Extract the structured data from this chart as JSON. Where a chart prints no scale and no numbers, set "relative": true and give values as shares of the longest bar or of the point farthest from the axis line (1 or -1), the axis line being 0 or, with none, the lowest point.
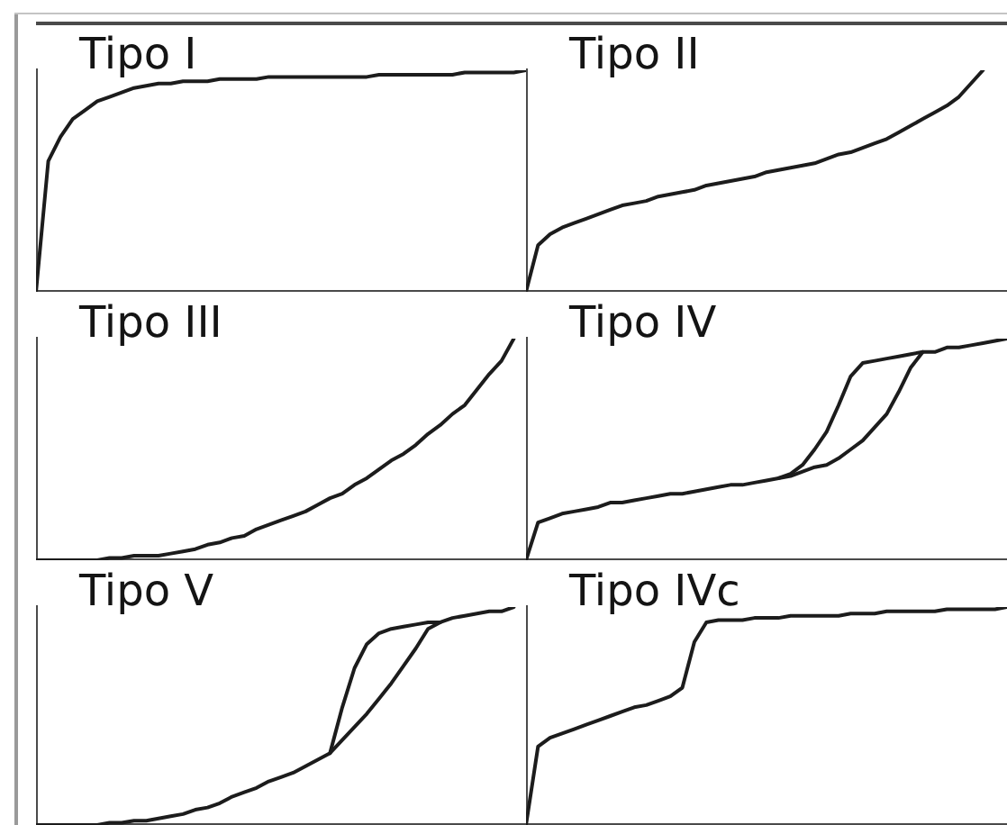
{
  "chart_data": [
    {
      "type": "line",
      "title": "Tipo I",
      "relative": true,
      "marker": "none",
      "categories": [
        null,
        null,
        null,
        null,
        null,
        null,
        null,
        null,
        null,
        null,
        null,
        null,
        null,
        null,
        null,
        null,
        null,
        null,
        null,
        null,
        null,
        null,
        null,
        null,
        null,
        null,
        null,
        null,
        null,
        null,
        null,
        null,
        null,
        null,
        null,
        null,
        null,
        null,
        null,
        null,
        null
      ],
      "series": [
        {
          "color": "#1c1c1c",
          "values": [
            0,
            0.59,
            0.7,
            0.78,
            0.82,
            0.86,
            0.88,
            0.9,
            0.92,
            0.93,
            0.94,
            0.94,
            0.95,
            0.95,
            0.95,
            0.96,
            0.96,
            0.96,
            0.96,
            0.97,
            0.97,
            0.97,
            0.97,
            0.97,
            0.97,
            0.97,
            0.97,
            0.97,
            0.98,
            0.98,
            0.98,
            0.98,
            0.98,
            0.98,
            0.98,
            0.99,
            0.99,
            0.99,
            0.99,
            0.99,
            1
          ]
        }
      ]
    },
    {
      "type": "line",
      "title": "Tipo II",
      "relative": true,
      "marker": "none",
      "categories": [
        null,
        null,
        null,
        null,
        null,
        null,
        null,
        null,
        null,
        null,
        null,
        null,
        null,
        null,
        null,
        null,
        null,
        null,
        null,
        null,
        null,
        null,
        null,
        null,
        null,
        null,
        null,
        null,
        null,
        null,
        null,
        null,
        null,
        null,
        null,
        null,
        null,
        null,
        null,
        null,
        null
      ],
      "series": [
        {
          "color": "#1c1c1c",
          "values": [
            0,
            0.21,
            0.26,
            0.29,
            0.31,
            0.33,
            0.35,
            0.37,
            0.39,
            0.4,
            0.41,
            0.43,
            0.44,
            0.45,
            0.46,
            0.48,
            0.49,
            0.5,
            0.51,
            0.52,
            0.54,
            0.55,
            0.56,
            0.57,
            0.58,
            0.6,
            0.62,
            0.63,
            0.65,
            0.67,
            0.69,
            0.72,
            0.75,
            0.78,
            0.81,
            0.84,
            0.88,
            0.94,
            1,
            null,
            null
          ]
        }
      ]
    },
    {
      "type": "line",
      "title": "Tipo III",
      "relative": true,
      "marker": "none",
      "categories": [
        null,
        null,
        null,
        null,
        null,
        null,
        null,
        null,
        null,
        null,
        null,
        null,
        null,
        null,
        null,
        null,
        null,
        null,
        null,
        null,
        null,
        null,
        null,
        null,
        null,
        null,
        null,
        null,
        null,
        null,
        null,
        null,
        null,
        null,
        null,
        null,
        null,
        null,
        null,
        null,
        null
      ],
      "series": [
        {
          "color": "#1c1c1c",
          "values": [
            0,
            0,
            0,
            0,
            0,
            0,
            0.01,
            0.01,
            0.02,
            0.02,
            0.02,
            0.03,
            0.04,
            0.05,
            0.07,
            0.08,
            0.1,
            0.11,
            0.14,
            0.16,
            0.18,
            0.2,
            0.22,
            0.25,
            0.28,
            0.3,
            0.34,
            0.37,
            0.41,
            0.45,
            0.48,
            0.52,
            0.57,
            0.61,
            0.66,
            0.7,
            0.77,
            0.84,
            0.9,
            1,
            null
          ]
        }
      ]
    },
    {
      "type": "line",
      "title": "Tipo IV",
      "relative": true,
      "marker": "none",
      "categories": [
        null,
        null,
        null,
        null,
        null,
        null,
        null,
        null,
        null,
        null,
        null,
        null,
        null,
        null,
        null,
        null,
        null,
        null,
        null,
        null,
        null,
        null,
        null,
        null,
        null,
        null,
        null,
        null,
        null,
        null,
        null,
        null,
        null,
        null,
        null,
        null,
        null,
        null,
        null,
        null,
        null
      ],
      "series": [
        {
          "color": "#1c1c1c",
          "values": [
            0,
            0.17,
            0.19,
            0.21,
            0.22,
            0.23,
            0.24,
            0.26,
            0.26,
            0.27,
            0.28,
            0.29,
            0.3,
            0.3,
            0.31,
            0.32,
            0.33,
            0.34,
            0.34,
            0.35,
            0.36,
            0.37,
            0.38,
            0.4,
            0.42,
            0.43,
            0.46,
            0.5,
            0.54,
            0.6,
            0.66,
            0.76,
            0.87,
            0.94,
            0.94,
            0.96,
            0.96,
            0.97,
            0.98,
            0.99,
            1
          ]
        },
        {
          "color": "#1c1c1c",
          "values": [
            null,
            null,
            null,
            null,
            null,
            null,
            null,
            null,
            null,
            null,
            null,
            null,
            null,
            null,
            null,
            null,
            null,
            null,
            null,
            null,
            null,
            0.37,
            0.39,
            0.43,
            0.5,
            0.58,
            0.7,
            0.83,
            0.89,
            0.9,
            0.91,
            0.92,
            0.93,
            0.94,
            null,
            null,
            null,
            null,
            null,
            null,
            null
          ]
        }
      ]
    },
    {
      "type": "line",
      "title": "Tipo V",
      "relative": true,
      "marker": "none",
      "categories": [
        null,
        null,
        null,
        null,
        null,
        null,
        null,
        null,
        null,
        null,
        null,
        null,
        null,
        null,
        null,
        null,
        null,
        null,
        null,
        null,
        null,
        null,
        null,
        null,
        null,
        null,
        null,
        null,
        null,
        null,
        null,
        null,
        null,
        null,
        null,
        null,
        null,
        null,
        null,
        null,
        null
      ],
      "series": [
        {
          "color": "#1c1c1c",
          "values": [
            0,
            0,
            0,
            0,
            0,
            0,
            0.01,
            0.01,
            0.02,
            0.02,
            0.03,
            0.04,
            0.05,
            0.07,
            0.08,
            0.1,
            0.13,
            0.15,
            0.17,
            0.2,
            0.22,
            0.24,
            0.27,
            0.3,
            0.33,
            0.39,
            0.45,
            0.51,
            0.58,
            0.65,
            0.73,
            0.81,
            0.9,
            0.93,
            0.95,
            0.96,
            0.97,
            0.98,
            0.98,
            1,
            null
          ]
        },
        {
          "color": "#1c1c1c",
          "values": [
            null,
            null,
            null,
            null,
            null,
            null,
            null,
            null,
            null,
            null,
            null,
            null,
            null,
            null,
            null,
            null,
            null,
            null,
            null,
            null,
            null,
            null,
            null,
            null,
            0.33,
            0.54,
            0.72,
            0.83,
            0.88,
            0.9,
            0.91,
            0.92,
            0.93,
            0.93,
            null,
            null,
            null,
            null,
            null,
            null,
            null
          ]
        }
      ]
    },
    {
      "type": "line",
      "title": "Tipo IVc",
      "relative": true,
      "marker": "none",
      "categories": [
        null,
        null,
        null,
        null,
        null,
        null,
        null,
        null,
        null,
        null,
        null,
        null,
        null,
        null,
        null,
        null,
        null,
        null,
        null,
        null,
        null,
        null,
        null,
        null,
        null,
        null,
        null,
        null,
        null,
        null,
        null,
        null,
        null,
        null,
        null,
        null,
        null,
        null,
        null,
        null,
        null
      ],
      "series": [
        {
          "color": "#1c1c1c",
          "values": [
            0,
            0.36,
            0.4,
            0.42,
            0.44,
            0.46,
            0.48,
            0.5,
            0.52,
            0.54,
            0.55,
            0.57,
            0.59,
            0.63,
            0.84,
            0.93,
            0.94,
            0.94,
            0.94,
            0.95,
            0.95,
            0.95,
            0.96,
            0.96,
            0.96,
            0.96,
            0.96,
            0.97,
            0.97,
            0.97,
            0.98,
            0.98,
            0.98,
            0.98,
            0.98,
            0.99,
            0.99,
            0.99,
            0.99,
            0.99,
            1
          ]
        }
      ]
    }
  ]
}
